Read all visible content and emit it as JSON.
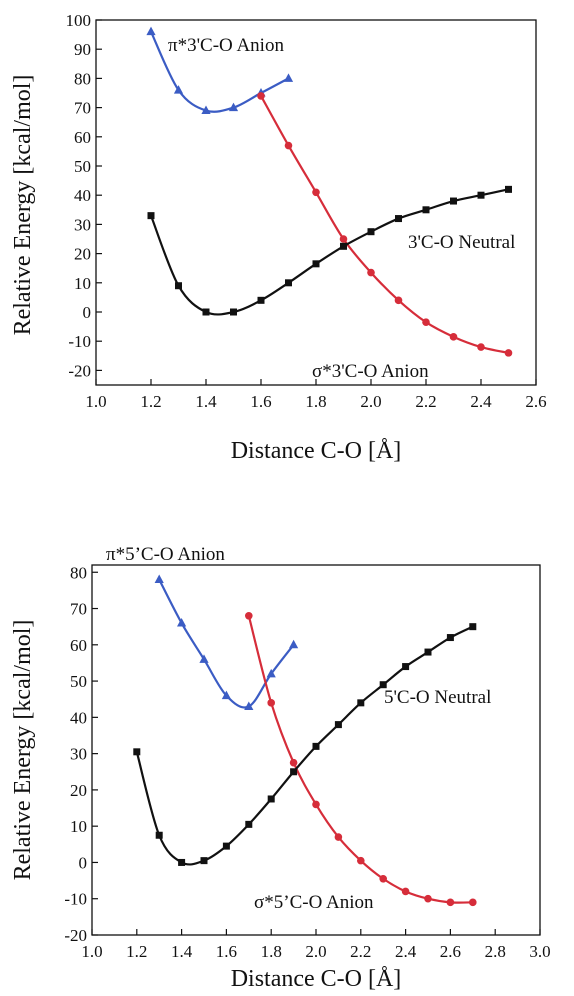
{
  "chart_data": [
    {
      "type": "line",
      "title": "",
      "xlabel": "Distance C-O [Å]",
      "ylabel": "Relative Energy [kcal/mol]",
      "xlim": [
        1.0,
        2.6
      ],
      "ylim": [
        -25,
        100
      ],
      "x_ticks": [
        "1.0",
        "1.2",
        "1.4",
        "1.6",
        "1.8",
        "2.0",
        "2.2",
        "2.4",
        "2.6"
      ],
      "y_ticks": [
        "-20",
        "-10",
        "0",
        "10",
        "20",
        "30",
        "40",
        "50",
        "60",
        "70",
        "80",
        "90",
        "100"
      ],
      "series": [
        {
          "name": "π*3'C-O Anion",
          "color": "#3b5cc4",
          "marker": "triangle",
          "x": [
            1.2,
            1.3,
            1.4,
            1.5,
            1.6,
            1.7
          ],
          "y": [
            96,
            76,
            69,
            70,
            75,
            80
          ]
        },
        {
          "name": "σ*3'C-O Anion",
          "color": "#d62d3a",
          "marker": "circle",
          "x": [
            1.6,
            1.7,
            1.8,
            1.9,
            2.0,
            2.1,
            2.2,
            2.3,
            2.4,
            2.5
          ],
          "y": [
            74,
            57,
            41,
            25,
            13.5,
            4,
            -3.5,
            -8.5,
            -12,
            -14
          ]
        },
        {
          "name": "3'C-O Neutral",
          "color": "#111111",
          "marker": "square",
          "x": [
            1.2,
            1.3,
            1.4,
            1.5,
            1.6,
            1.7,
            1.8,
            1.9,
            2.0,
            2.1,
            2.2,
            2.3,
            2.4,
            2.5
          ],
          "y": [
            33,
            9,
            0,
            0,
            4,
            10,
            16.5,
            22.5,
            27.5,
            32,
            35,
            38,
            40,
            42
          ]
        }
      ]
    },
    {
      "type": "line",
      "title": "",
      "xlabel": "Distance C-O [Å]",
      "ylabel": "Relative Energy [kcal/mol]",
      "xlim": [
        1.0,
        3.0
      ],
      "ylim": [
        -20,
        82
      ],
      "x_ticks": [
        "1.0",
        "1.2",
        "1.4",
        "1.6",
        "1.8",
        "2.0",
        "2.2",
        "2.4",
        "2.6",
        "2.8",
        "3.0"
      ],
      "y_ticks": [
        "-20",
        "-10",
        "0",
        "10",
        "20",
        "30",
        "40",
        "50",
        "60",
        "70",
        "80"
      ],
      "series": [
        {
          "name": "π*5'C-O Anion",
          "color": "#3b5cc4",
          "marker": "triangle",
          "x": [
            1.3,
            1.4,
            1.5,
            1.6,
            1.7,
            1.8,
            1.9
          ],
          "y": [
            78,
            66,
            56,
            46,
            43,
            52,
            60
          ]
        },
        {
          "name": "σ*5'C-O Anion",
          "color": "#d62d3a",
          "marker": "circle",
          "x": [
            1.7,
            1.8,
            1.9,
            2.0,
            2.1,
            2.2,
            2.3,
            2.4,
            2.5,
            2.6,
            2.7
          ],
          "y": [
            68,
            44,
            27.5,
            16,
            7,
            0.5,
            -4.5,
            -8,
            -10,
            -11,
            -11
          ]
        },
        {
          "name": "5'C-O Neutral",
          "color": "#111111",
          "marker": "square",
          "x": [
            1.2,
            1.3,
            1.4,
            1.5,
            1.6,
            1.7,
            1.8,
            1.9,
            2.0,
            2.1,
            2.2,
            2.3,
            2.4,
            2.5,
            2.6,
            2.7
          ],
          "y": [
            30.5,
            7.5,
            0,
            0.5,
            4.5,
            10.5,
            17.5,
            25,
            32,
            38,
            44,
            49,
            54,
            58,
            62,
            65
          ]
        }
      ]
    }
  ],
  "labels": {
    "pi3": "π*3'C-O Anion",
    "sigma3": "σ*3'C-O Anion",
    "neutral3": "3'C-O Neutral",
    "pi5": "π*5’C-O Anion",
    "sigma5": "σ*5’C-O Anion",
    "neutral5": "5'C-O Neutral"
  }
}
